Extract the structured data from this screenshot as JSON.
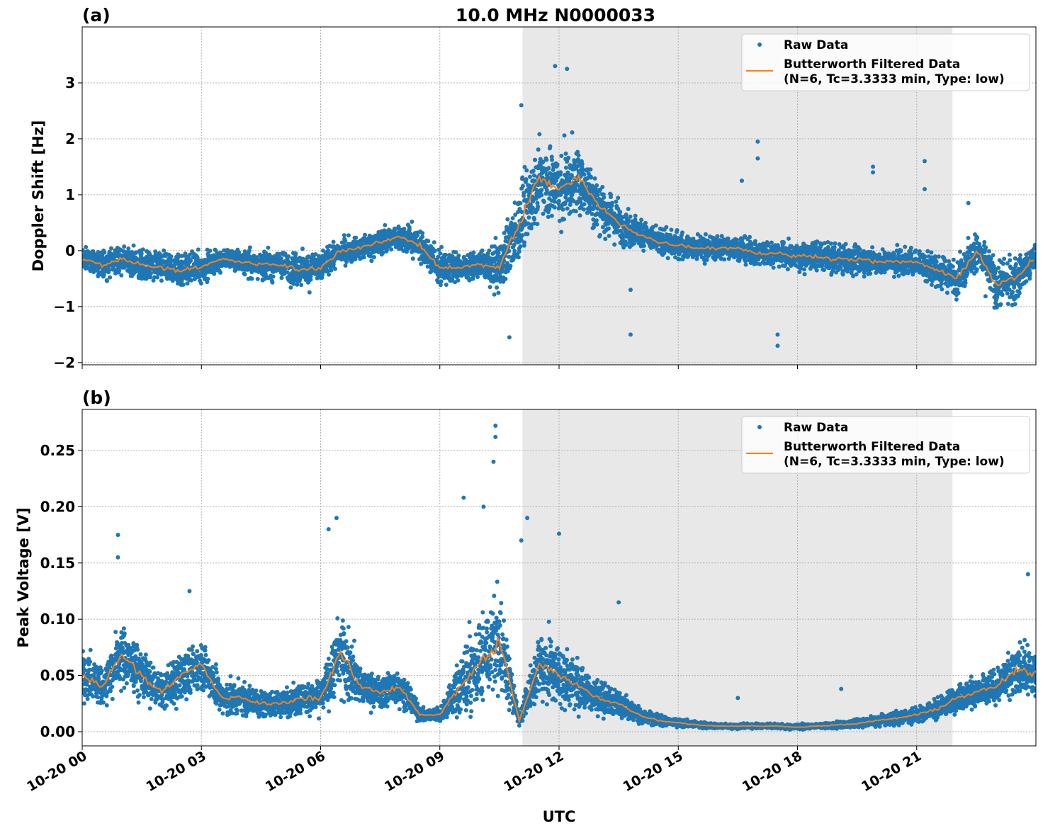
{
  "title": "10.0 MHz N0000033",
  "xlabel": "UTC",
  "x_ticks": [
    "10-20 00",
    "10-20 03",
    "10-20 06",
    "10-20 09",
    "10-20 12",
    "10-20 15",
    "10-20 18",
    "10-20 21"
  ],
  "x_tick_hours": [
    0,
    3,
    6,
    9,
    12,
    15,
    18,
    21
  ],
  "xlim_hours": [
    0,
    24
  ],
  "shaded_region_hours": [
    11.08,
    21.9
  ],
  "colors": {
    "raw": "#1f77b4",
    "filtered": "#ff7f0e",
    "shade": "#e8e8e8",
    "grid": "#b0b0b0"
  },
  "legend": {
    "raw": "Raw Data",
    "filtered_line1": "Butterworth Filtered Data",
    "filtered_line2": "(N=6, Tc=3.3333 min, Type: low)",
    "placement": "top-right"
  },
  "chart_data": [
    {
      "type": "scatter+line",
      "panel_label": "(a)",
      "ylabel": "Doppler Shift [Hz]",
      "ylim": [
        -2.04,
        4.0
      ],
      "y_ticks": [
        -2,
        -1,
        0,
        1,
        2,
        3
      ],
      "y_tick_labels": [
        "−2",
        "−1",
        "0",
        "1",
        "2",
        "3"
      ],
      "grid": true,
      "x_hours": [
        0,
        0.5,
        1,
        1.5,
        2,
        2.5,
        3,
        3.5,
        4,
        4.5,
        5,
        5.5,
        6,
        6.5,
        7,
        7.5,
        8,
        8.5,
        9,
        9.5,
        10,
        10.5,
        11,
        11.5,
        12,
        12.5,
        13,
        13.5,
        14,
        14.5,
        15,
        15.5,
        16,
        16.5,
        17,
        17.5,
        18,
        18.5,
        19,
        19.5,
        20,
        20.5,
        21,
        21.5,
        22,
        22.5,
        23,
        23.5,
        24
      ],
      "filtered": [
        -0.15,
        -0.25,
        -0.15,
        -0.25,
        -0.3,
        -0.35,
        -0.3,
        -0.15,
        -0.2,
        -0.25,
        -0.25,
        -0.35,
        -0.3,
        0.0,
        0.05,
        0.15,
        0.25,
        0.1,
        -0.3,
        -0.3,
        -0.25,
        -0.3,
        0.5,
        1.3,
        1.1,
        1.3,
        0.8,
        0.5,
        0.3,
        0.15,
        0.1,
        0.05,
        0.05,
        0.05,
        -0.05,
        -0.05,
        -0.1,
        -0.1,
        -0.15,
        -0.15,
        -0.2,
        -0.2,
        -0.2,
        -0.35,
        -0.5,
        0.0,
        -0.6,
        -0.5,
        -0.1
      ],
      "raw_spread": [
        0.3,
        0.35,
        0.35,
        0.35,
        0.35,
        0.4,
        0.35,
        0.3,
        0.3,
        0.35,
        0.35,
        0.4,
        0.35,
        0.3,
        0.3,
        0.3,
        0.3,
        0.4,
        0.45,
        0.3,
        0.3,
        0.6,
        0.9,
        0.9,
        0.9,
        0.8,
        0.6,
        0.5,
        0.35,
        0.3,
        0.3,
        0.3,
        0.3,
        0.3,
        0.3,
        0.3,
        0.35,
        0.35,
        0.35,
        0.35,
        0.3,
        0.3,
        0.3,
        0.4,
        0.4,
        0.5,
        0.6,
        0.5,
        0.4
      ],
      "raw_outliers": [
        [
          11.9,
          3.3
        ],
        [
          12.2,
          3.25
        ],
        [
          11.05,
          2.6
        ],
        [
          10.75,
          -1.55
        ],
        [
          13.8,
          -1.5
        ],
        [
          13.8,
          -0.7
        ],
        [
          17.0,
          1.95
        ],
        [
          17.0,
          1.65
        ],
        [
          16.6,
          1.25
        ],
        [
          17.5,
          -1.7
        ],
        [
          17.5,
          -1.5
        ],
        [
          19.9,
          1.5
        ],
        [
          19.9,
          1.4
        ],
        [
          21.2,
          1.6
        ],
        [
          21.2,
          1.1
        ],
        [
          22.3,
          0.85
        ]
      ]
    },
    {
      "type": "scatter+line",
      "panel_label": "(b)",
      "ylabel": "Peak Voltage [V]",
      "ylim": [
        -0.0126,
        0.2865
      ],
      "y_ticks": [
        0,
        0.05,
        0.1,
        0.15,
        0.2,
        0.25
      ],
      "y_tick_labels": [
        "0.00",
        "0.05",
        "0.10",
        "0.15",
        "0.20",
        "0.25"
      ],
      "grid": true,
      "x_hours": [
        0,
        0.5,
        1,
        1.5,
        2,
        2.5,
        3,
        3.5,
        4,
        4.5,
        5,
        5.5,
        6,
        6.5,
        7,
        7.5,
        8,
        8.5,
        9,
        9.5,
        10,
        10.5,
        11,
        11.5,
        12,
        12.5,
        13,
        13.5,
        14,
        14.5,
        15,
        15.5,
        16,
        16.5,
        17,
        17.5,
        18,
        18.5,
        19,
        19.5,
        20,
        20.5,
        21,
        21.5,
        22,
        22.5,
        23,
        23.5,
        24
      ],
      "filtered": [
        0.05,
        0.04,
        0.07,
        0.05,
        0.035,
        0.05,
        0.06,
        0.03,
        0.03,
        0.025,
        0.025,
        0.03,
        0.03,
        0.07,
        0.04,
        0.035,
        0.04,
        0.015,
        0.015,
        0.04,
        0.06,
        0.08,
        0.01,
        0.06,
        0.05,
        0.04,
        0.03,
        0.025,
        0.015,
        0.01,
        0.008,
        0.006,
        0.005,
        0.005,
        0.005,
        0.005,
        0.004,
        0.005,
        0.006,
        0.007,
        0.01,
        0.012,
        0.015,
        0.02,
        0.03,
        0.035,
        0.04,
        0.055,
        0.05
      ],
      "raw_spread": [
        0.03,
        0.025,
        0.04,
        0.03,
        0.02,
        0.03,
        0.03,
        0.02,
        0.02,
        0.015,
        0.015,
        0.02,
        0.02,
        0.05,
        0.025,
        0.02,
        0.025,
        0.008,
        0.008,
        0.04,
        0.05,
        0.06,
        0.005,
        0.04,
        0.04,
        0.03,
        0.02,
        0.015,
        0.01,
        0.007,
        0.005,
        0.004,
        0.003,
        0.003,
        0.003,
        0.003,
        0.003,
        0.003,
        0.004,
        0.005,
        0.006,
        0.008,
        0.01,
        0.012,
        0.015,
        0.02,
        0.02,
        0.03,
        0.03
      ],
      "raw_outliers": [
        [
          0.9,
          0.175
        ],
        [
          0.9,
          0.155
        ],
        [
          6.4,
          0.19
        ],
        [
          6.2,
          0.18
        ],
        [
          9.6,
          0.208
        ],
        [
          10.4,
          0.272
        ],
        [
          10.4,
          0.262
        ],
        [
          10.35,
          0.24
        ],
        [
          10.1,
          0.2
        ],
        [
          11.2,
          0.19
        ],
        [
          12.0,
          0.176
        ],
        [
          11.05,
          0.17
        ],
        [
          2.7,
          0.125
        ],
        [
          13.5,
          0.115
        ],
        [
          16.5,
          0.03
        ],
        [
          19.1,
          0.038
        ],
        [
          23.8,
          0.14
        ]
      ]
    }
  ]
}
